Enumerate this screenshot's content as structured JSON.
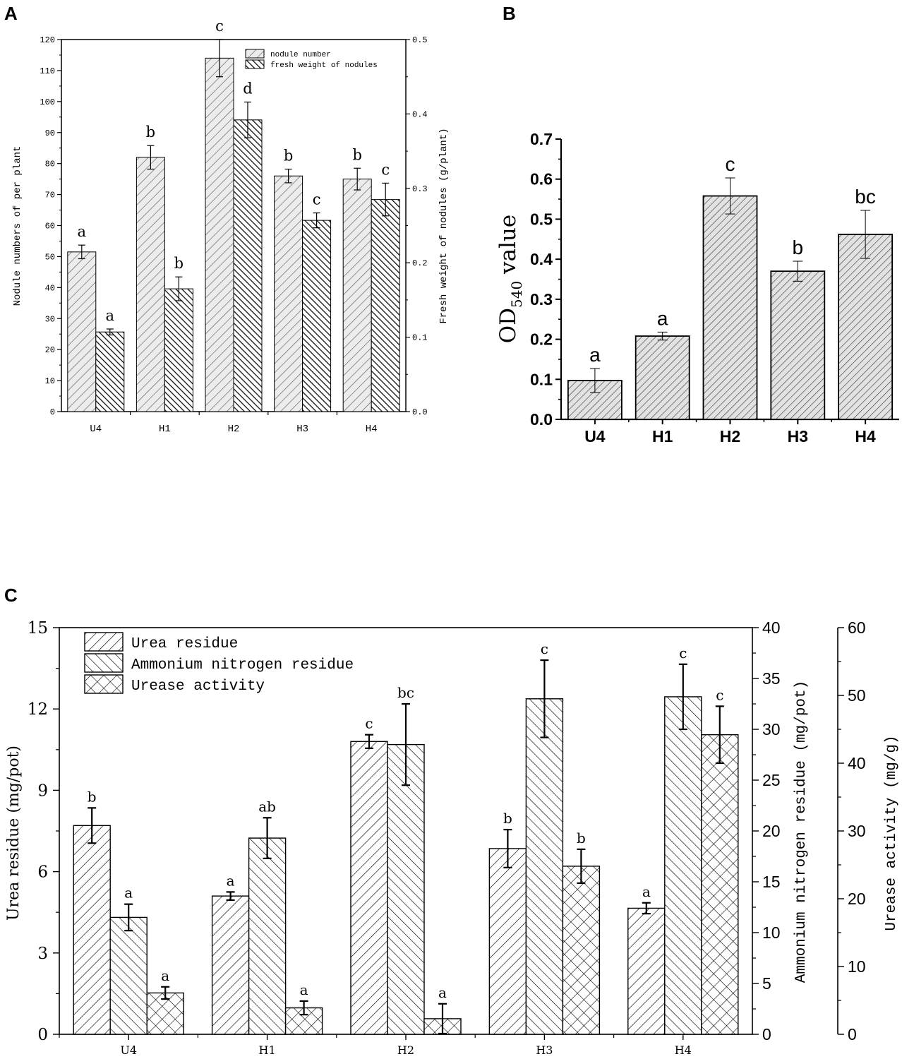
{
  "panels": {
    "a": "A",
    "b": "B",
    "c": "C"
  },
  "chart_data": [
    {
      "type": "bar",
      "panel": "A",
      "categories": [
        "U4",
        "H1",
        "H2",
        "H3",
        "H4"
      ],
      "series": [
        {
          "name": "nodule number",
          "axis": "left",
          "values": [
            51.5,
            82,
            114,
            76,
            75
          ],
          "errors": [
            2.2,
            3.8,
            6,
            2.2,
            3.5
          ],
          "letters": [
            "a",
            "b",
            "c",
            "b",
            "b"
          ]
        },
        {
          "name": "fresh weight of nodules",
          "axis": "right",
          "values": [
            0.107,
            0.165,
            0.392,
            0.257,
            0.285
          ],
          "errors": [
            0.004,
            0.016,
            0.024,
            0.01,
            0.022
          ],
          "letters": [
            "a",
            "b",
            "d",
            "c",
            "c"
          ]
        }
      ],
      "ylabel": "Nodule numbers of per plant",
      "y2label": "Fresh weight of nodules (g/plant)",
      "ylim": [
        0,
        120
      ],
      "y2lim": [
        0,
        0.5
      ],
      "yticks": [
        "0",
        "10",
        "20",
        "30",
        "40",
        "50",
        "60",
        "70",
        "80",
        "90",
        "100",
        "110",
        "120"
      ],
      "y2ticks": [
        "0.0",
        "0.1",
        "0.2",
        "0.3",
        "0.4",
        "0.5"
      ],
      "legend_position": "top-right"
    },
    {
      "type": "bar",
      "panel": "B",
      "categories": [
        "U4",
        "H1",
        "H2",
        "H3",
        "H4"
      ],
      "values": [
        0.097,
        0.208,
        0.558,
        0.37,
        0.462
      ],
      "errors": [
        0.03,
        0.01,
        0.045,
        0.025,
        0.06
      ],
      "letters": [
        "a",
        "a",
        "c",
        "b",
        "bc"
      ],
      "ylabel_main": "OD",
      "ylabel_sub": "540",
      "ylabel_tail": " value",
      "ylim": [
        0,
        0.7
      ],
      "yticks": [
        "0.0",
        "0.1",
        "0.2",
        "0.3",
        "0.4",
        "0.5",
        "0.6",
        "0.7"
      ]
    },
    {
      "type": "bar",
      "panel": "C",
      "categories": [
        "U4",
        "H1",
        "H2",
        "H3",
        "H4"
      ],
      "series": [
        {
          "name": "Urea residue",
          "axis": "left",
          "values": [
            7.7,
            5.1,
            10.8,
            6.85,
            4.65
          ],
          "errors": [
            0.65,
            0.15,
            0.25,
            0.7,
            0.2
          ],
          "letters": [
            "b",
            "a",
            "c",
            "b",
            "a"
          ]
        },
        {
          "name": "Ammonium nitrogen residue",
          "axis": "right1",
          "values": [
            11.5,
            19.3,
            28.5,
            33,
            33.2
          ],
          "errors": [
            1.3,
            2,
            4,
            3.8,
            3.2
          ],
          "letters": [
            "a",
            "ab",
            "bc",
            "c",
            "c"
          ]
        },
        {
          "name": "Urease activity",
          "axis": "right2",
          "values": [
            6.1,
            3.9,
            2.3,
            24.8,
            44.2
          ],
          "errors": [
            0.9,
            1,
            2.2,
            2.5,
            4.2
          ],
          "letters": [
            "a",
            "a",
            "a",
            "b",
            "c"
          ]
        }
      ],
      "ylabel": "Urea residue (mg/pot)",
      "y2label": "Ammonium nitrogen residue (mg/pot)",
      "y3label": "Urease activity (mg/g)",
      "ylim": [
        0,
        15
      ],
      "y2lim": [
        0,
        40
      ],
      "y3lim": [
        0,
        60
      ],
      "yticks": [
        "0",
        "3",
        "6",
        "9",
        "12",
        "15"
      ],
      "y2ticks": [
        "0",
        "5",
        "10",
        "15",
        "20",
        "25",
        "30",
        "35",
        "40"
      ],
      "y3ticks": [
        "0",
        "10",
        "20",
        "30",
        "40",
        "50",
        "60"
      ],
      "legend_position": "top-left"
    }
  ]
}
